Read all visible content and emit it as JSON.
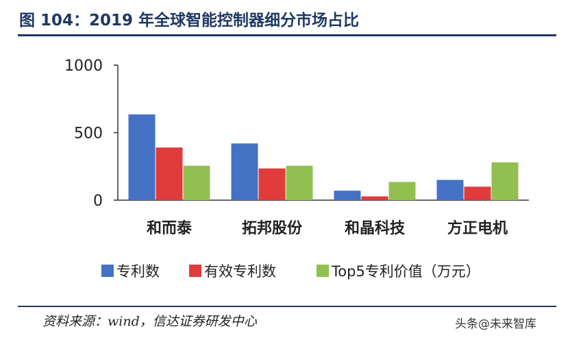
{
  "header": {
    "title": "图 104：2019 年全球智能控制器细分市场占比"
  },
  "source": "资料来源：wind，信达证券研发中心",
  "watermark": "头条@未来智库",
  "chart_data": {
    "type": "bar",
    "categories": [
      "和而泰",
      "拓邦股份",
      "和晶科技",
      "方正电机"
    ],
    "series": [
      {
        "name": "专利数",
        "values": [
          635,
          420,
          70,
          150
        ],
        "color": "#4472c4"
      },
      {
        "name": "有效专利数",
        "values": [
          390,
          235,
          28,
          100
        ],
        "color": "#e03c3c"
      },
      {
        "name": "Top5专利价值（万元）",
        "values": [
          255,
          255,
          135,
          280
        ],
        "color": "#92c050"
      }
    ],
    "yticks": [
      0,
      500,
      1000
    ],
    "ylim": [
      0,
      1000
    ],
    "legend_position": "bottom",
    "grid": false
  }
}
